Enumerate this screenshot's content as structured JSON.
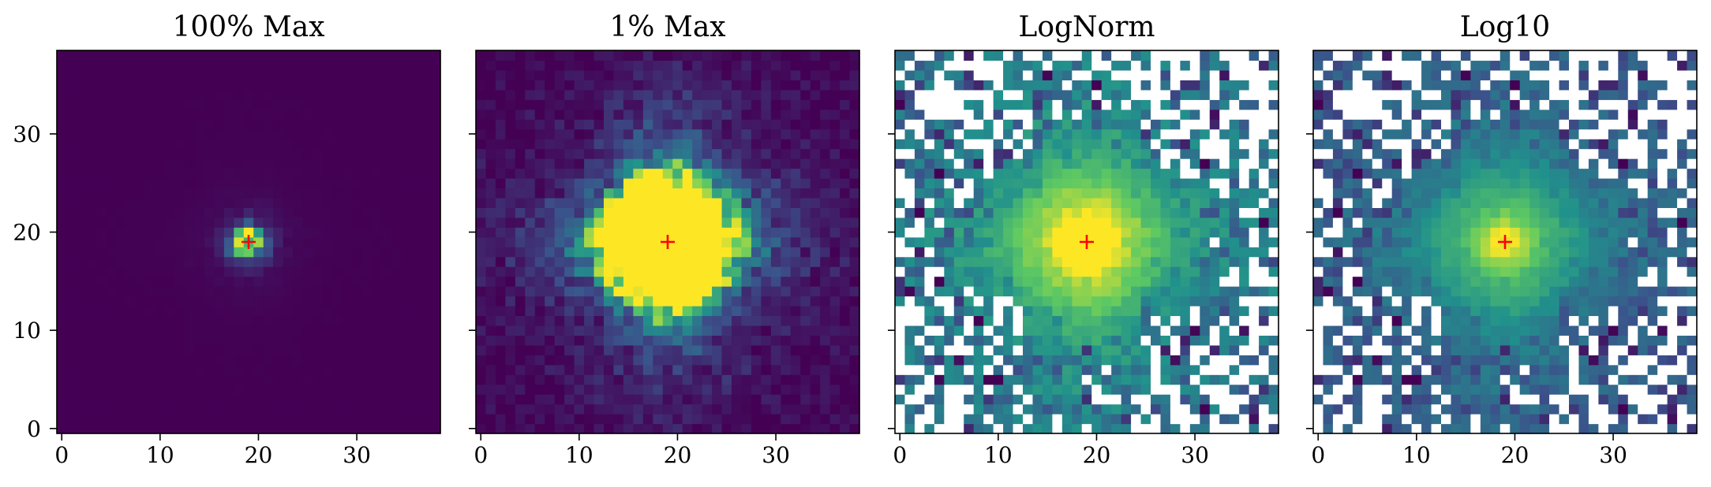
{
  "figure": {
    "shared_y_axis": true
  },
  "chart_data": [
    {
      "type": "heatmap",
      "title": "100% Max",
      "normalization": "linear",
      "vmax_fraction_of_peak": 1.0,
      "grid_size": [
        39,
        39
      ],
      "xlim": [
        -0.5,
        38.5
      ],
      "ylim": [
        -0.5,
        38.5
      ],
      "xticks": [
        0,
        10,
        20,
        30
      ],
      "yticks": [
        0,
        10,
        20,
        30
      ],
      "show_y_tick_labels": true,
      "colormap": "viridis",
      "colormap_stops": [
        "#440154",
        "#3b528b",
        "#21918c",
        "#5ec962",
        "#fde725"
      ],
      "masked_pixels": "none",
      "center_marker": {
        "x": 19,
        "y": 19,
        "symbol": "+",
        "color": "#ff0000"
      }
    },
    {
      "type": "heatmap",
      "title": "1% Max",
      "normalization": "linear",
      "vmax_fraction_of_peak": 0.01,
      "grid_size": [
        39,
        39
      ],
      "xlim": [
        -0.5,
        38.5
      ],
      "ylim": [
        -0.5,
        38.5
      ],
      "xticks": [
        0,
        10,
        20,
        30
      ],
      "yticks": [
        0,
        10,
        20,
        30
      ],
      "show_y_tick_labels": false,
      "colormap": "viridis",
      "colormap_stops": [
        "#440154",
        "#3b528b",
        "#21918c",
        "#5ec962",
        "#fde725"
      ],
      "masked_pixels": "none",
      "center_marker": {
        "x": 19,
        "y": 19,
        "symbol": "+",
        "color": "#ff0000"
      }
    },
    {
      "type": "heatmap",
      "title": "LogNorm",
      "normalization": "log",
      "grid_size": [
        39,
        39
      ],
      "xlim": [
        -0.5,
        38.5
      ],
      "ylim": [
        -0.5,
        38.5
      ],
      "xticks": [
        0,
        10,
        20,
        30
      ],
      "yticks": [
        0,
        10,
        20,
        30
      ],
      "show_y_tick_labels": false,
      "colormap": "viridis",
      "colormap_stops": [
        "#440154",
        "#3b528b",
        "#21918c",
        "#5ec962",
        "#fde725"
      ],
      "masked_pixels": "white",
      "center_marker": {
        "x": 19,
        "y": 19,
        "symbol": "+",
        "color": "#ff0000"
      }
    },
    {
      "type": "heatmap",
      "title": "Log10",
      "normalization": "log10",
      "grid_size": [
        39,
        39
      ],
      "xlim": [
        -0.5,
        38.5
      ],
      "ylim": [
        -0.5,
        38.5
      ],
      "xticks": [
        0,
        10,
        20,
        30
      ],
      "yticks": [
        0,
        10,
        20,
        30
      ],
      "show_y_tick_labels": false,
      "colormap": "viridis",
      "colormap_stops": [
        "#440154",
        "#3b528b",
        "#21918c",
        "#5ec962",
        "#fde725"
      ],
      "masked_pixels": "white",
      "center_marker": {
        "x": 19,
        "y": 19,
        "symbol": "+",
        "color": "#ff0000"
      }
    }
  ]
}
